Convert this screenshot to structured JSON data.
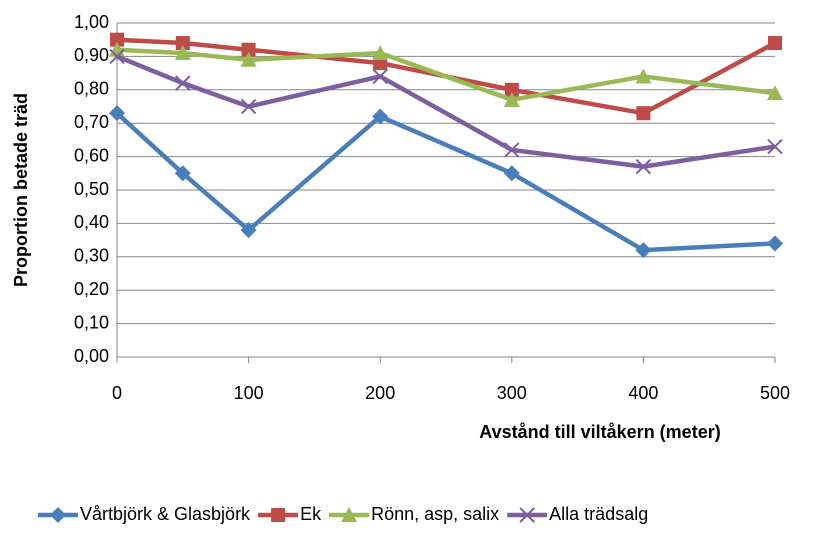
{
  "chart_data": {
    "type": "line",
    "x_label": "Avstånd till viltåkern (meter)",
    "y_label": "Proportion betade träd",
    "x": [
      0,
      50,
      100,
      200,
      300,
      400,
      500
    ],
    "xlim": [
      0,
      500
    ],
    "xticks": [
      0,
      100,
      200,
      300,
      400,
      500
    ],
    "ylim": [
      0,
      1
    ],
    "yticks": [
      {
        "value": 0,
        "label": "0,00"
      },
      {
        "value": 0.1,
        "label": "0,10"
      },
      {
        "value": 0.2,
        "label": "0,20"
      },
      {
        "value": 0.3,
        "label": "0,30"
      },
      {
        "value": 0.4,
        "label": "0,40"
      },
      {
        "value": 0.5,
        "label": "0,50"
      },
      {
        "value": 0.6,
        "label": "0,60"
      },
      {
        "value": 0.7,
        "label": "0,70"
      },
      {
        "value": 0.8,
        "label": "0,80"
      },
      {
        "value": 0.9,
        "label": "0,90"
      },
      {
        "value": 1,
        "label": "1,00"
      }
    ],
    "grid": true,
    "legend": "bottom",
    "series": [
      {
        "name": "Vårtbjörk & Glasbjörk",
        "color": "#4a7ebb",
        "marker": "diamond",
        "values": [
          0.73,
          0.55,
          0.38,
          0.72,
          0.55,
          0.32,
          0.34
        ]
      },
      {
        "name": "Ek",
        "color": "#be4b48",
        "marker": "square",
        "values": [
          0.95,
          0.94,
          0.92,
          0.88,
          0.8,
          0.73,
          0.94
        ]
      },
      {
        "name": "Rönn, asp, salix",
        "color": "#98b954",
        "marker": "triangle",
        "values": [
          0.92,
          0.91,
          0.89,
          0.91,
          0.77,
          0.84,
          0.79
        ]
      },
      {
        "name": "Alla trädsalg",
        "color": "#7d5fa0",
        "marker": "cross",
        "values": [
          0.9,
          0.82,
          0.75,
          0.84,
          0.62,
          0.57,
          0.63
        ]
      }
    ]
  }
}
